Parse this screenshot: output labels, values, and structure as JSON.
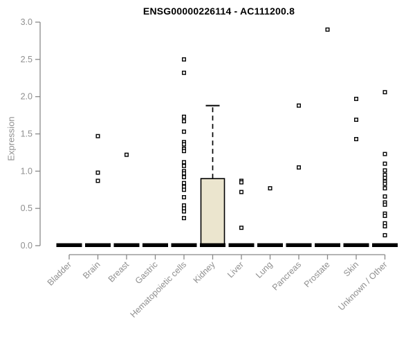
{
  "title": "ENSG00000226114 - AC111200.8",
  "colors": {
    "background": "#ffffff",
    "title_color": "#000000",
    "axis_line": "#888888",
    "axis_text": "#8f8f8f",
    "box_fill": "#EBE5CE",
    "box_stroke": "#000000",
    "point_fill": "#ffffff",
    "point_stroke": "#000000",
    "zero_bar": "#000000"
  },
  "chart_data": {
    "type": "boxplot",
    "title": "ENSG00000226114 - AC111200.8",
    "xlabel": "",
    "ylabel": "Expression",
    "ylim": [
      0.0,
      3.0
    ],
    "ytick_step": 0.5,
    "ytick_labels": [
      "0.0",
      "0.5",
      "1.0",
      "1.5",
      "2.0",
      "2.5",
      "3.0"
    ],
    "grid": "off",
    "legend": "none",
    "categories": [
      "Bladder",
      "Brain",
      "Breast",
      "Gastric",
      "Hematopoietic cells",
      "Kidney",
      "Liver",
      "Lung",
      "Pancreas",
      "Prostate",
      "Skin",
      "Unknown / Other"
    ],
    "boxes": [
      {
        "category": "Bladder",
        "q1": 0,
        "median": 0,
        "q3": 0,
        "whisker_low": 0,
        "whisker_high": 0,
        "outliers": []
      },
      {
        "category": "Brain",
        "q1": 0,
        "median": 0,
        "q3": 0,
        "whisker_low": 0,
        "whisker_high": 0,
        "outliers": [
          1.47,
          0.98,
          0.87
        ]
      },
      {
        "category": "Breast",
        "q1": 0,
        "median": 0,
        "q3": 0,
        "whisker_low": 0,
        "whisker_high": 0,
        "outliers": [
          1.22
        ]
      },
      {
        "category": "Gastric",
        "q1": 0,
        "median": 0,
        "q3": 0,
        "whisker_low": 0,
        "whisker_high": 0,
        "outliers": []
      },
      {
        "category": "Hematopoietic cells",
        "q1": 0,
        "median": 0,
        "q3": 0,
        "whisker_low": 0,
        "whisker_high": 0,
        "outliers": [
          2.5,
          2.32,
          1.73,
          1.67,
          1.53,
          1.39,
          1.36,
          1.3,
          1.27,
          1.12,
          1.07,
          1.0,
          0.97,
          0.92,
          0.84,
          0.79,
          0.75,
          0.65,
          0.54,
          0.5,
          0.46,
          0.37
        ]
      },
      {
        "category": "Kidney",
        "q1": 0,
        "median": 0,
        "q3": 0.9,
        "whisker_low": 0,
        "whisker_high": 1.88,
        "outliers": []
      },
      {
        "category": "Liver",
        "q1": 0,
        "median": 0,
        "q3": 0,
        "whisker_low": 0,
        "whisker_high": 0,
        "outliers": [
          0.87,
          0.85,
          0.72,
          0.24
        ]
      },
      {
        "category": "Lung",
        "q1": 0,
        "median": 0,
        "q3": 0,
        "whisker_low": 0,
        "whisker_high": 0,
        "outliers": [
          0.77
        ]
      },
      {
        "category": "Pancreas",
        "q1": 0,
        "median": 0,
        "q3": 0,
        "whisker_low": 0,
        "whisker_high": 0,
        "outliers": [
          1.88,
          1.05
        ]
      },
      {
        "category": "Prostate",
        "q1": 0,
        "median": 0,
        "q3": 0,
        "whisker_low": 0,
        "whisker_high": 0,
        "outliers": [
          2.9
        ]
      },
      {
        "category": "Skin",
        "q1": 0,
        "median": 0,
        "q3": 0,
        "whisker_low": 0,
        "whisker_high": 0,
        "outliers": [
          1.97,
          1.69,
          1.43
        ]
      },
      {
        "category": "Unknown / Other",
        "q1": 0,
        "median": 0,
        "q3": 0,
        "whisker_low": 0,
        "whisker_high": 0,
        "outliers": [
          2.06,
          1.23,
          1.1,
          1.01,
          0.95,
          0.91,
          0.86,
          0.83,
          0.77,
          0.66,
          0.58,
          0.55,
          0.43,
          0.4,
          0.3,
          0.26,
          0.14
        ]
      }
    ]
  }
}
